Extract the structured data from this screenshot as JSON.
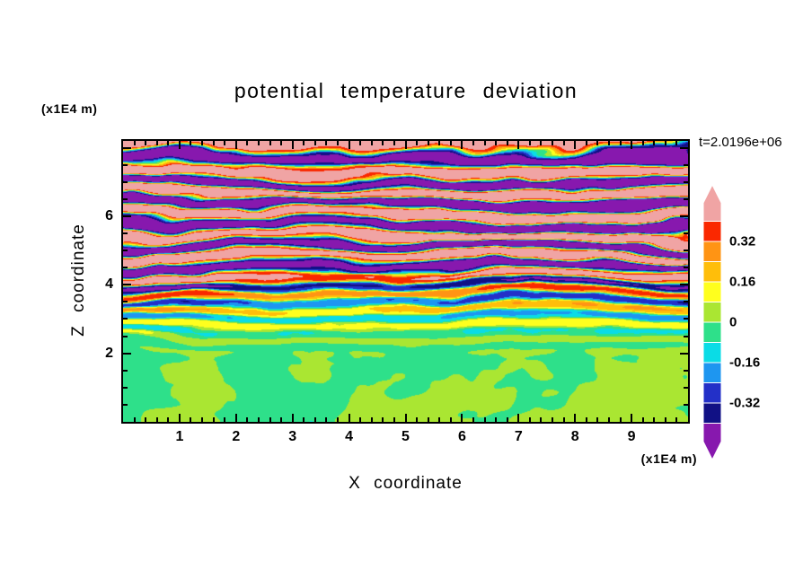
{
  "title": "potential temperature deviation",
  "timestamp": "t=2.0196e+06",
  "axes": {
    "x": {
      "label": "X coordinate",
      "unit": "(x1E4 m)",
      "min": 0,
      "max": 10,
      "major_ticks": [
        1,
        2,
        3,
        4,
        5,
        6,
        7,
        8,
        9
      ],
      "minor_tick_step": 0.2
    },
    "z": {
      "label": "Z coordinate",
      "unit": "(x1E4 m)",
      "min": 0,
      "max": 8.2,
      "major_ticks": [
        2,
        4,
        6
      ],
      "minor_tick_step": 0.5
    }
  },
  "colorbar": {
    "labels": [
      "0.32",
      "0.16",
      "0",
      "-0.16",
      "-0.32"
    ],
    "segments": [
      {
        "range": "> 0.40",
        "color": "#F0A4A4",
        "shape": "arrow-up"
      },
      {
        "range": "0.32 to 0.40",
        "color": "#FA2800"
      },
      {
        "range": "0.24 to 0.32",
        "color": "#FF9414"
      },
      {
        "range": "0.16 to 0.24",
        "color": "#FFBE0A"
      },
      {
        "range": "0.08 to 0.16",
        "color": "#FFFF1E"
      },
      {
        "range": "0 to 0.08",
        "color": "#AAE632"
      },
      {
        "range": "-0.08 to 0",
        "color": "#2EE08A"
      },
      {
        "range": "-0.16 to -0.08",
        "color": "#0ADCE6"
      },
      {
        "range": "-0.24 to -0.16",
        "color": "#1E96F0"
      },
      {
        "range": "-0.32 to -0.24",
        "color": "#2330C8"
      },
      {
        "range": "-0.40 to -0.32",
        "color": "#111185"
      },
      {
        "range": "< -0.40",
        "color": "#8718AE",
        "shape": "arrow-down"
      }
    ]
  },
  "chart_data": {
    "type": "heatmap",
    "title": "potential temperature deviation",
    "xlabel": "X coordinate",
    "ylabel": "Z coordinate",
    "x_unit": "(x1E4 m)",
    "z_unit": "(x1E4 m)",
    "xlim": [
      0,
      10
    ],
    "zlim": [
      0,
      8.2
    ],
    "x_ticks": [
      1,
      2,
      3,
      4,
      5,
      6,
      7,
      8,
      9
    ],
    "z_ticks": [
      2,
      4,
      6
    ],
    "time_annotation": "t=2.0196e+06",
    "contour_interval": 0.08,
    "level_boundaries": [
      -0.4,
      -0.32,
      -0.24,
      -0.16,
      -0.08,
      0,
      0.08,
      0.16,
      0.24,
      0.32,
      0.4
    ],
    "colorbar_tick_labels": [
      0.32,
      0.16,
      0,
      -0.16,
      -0.32
    ],
    "palette_high_to_low": [
      "#F0A4A4",
      "#FA2800",
      "#FF9414",
      "#FFBE0A",
      "#FFFF1E",
      "#AAE632",
      "#2EE08A",
      "#0ADCE6",
      "#1E96F0",
      "#2330C8",
      "#111185",
      "#8718AE"
    ],
    "field_description": "Stratified turbulence snapshot: near-zero deviations (two greens) in convective swirls below z~2.5e4 m; thin wavy layered streaks of yellow/cyan/orange/blue at mid-levels; large-amplitude alternating warm (salmon, >0.40) and cold (dark purple, <-0.40) horizontal bands with red/navy edges above z~4.5e4 m",
    "legend_position": "right",
    "grid": false
  }
}
